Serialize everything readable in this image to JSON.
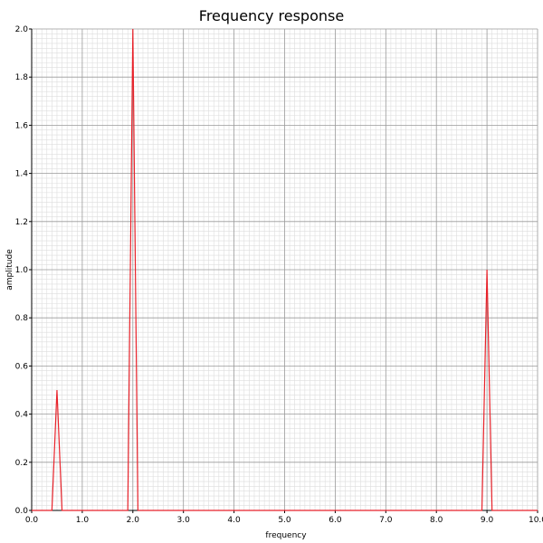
{
  "chart_data": {
    "type": "line",
    "title": "Frequency response",
    "xlabel": "frequency",
    "ylabel": "amplitude",
    "xlim": [
      0.0,
      10.0
    ],
    "ylim": [
      0.0,
      2.0
    ],
    "grid": true,
    "x_ticks": [
      "0.0",
      "1.0",
      "2.0",
      "3.0",
      "4.0",
      "5.0",
      "6.0",
      "7.0",
      "8.0",
      "9.0",
      "10.0"
    ],
    "y_ticks": [
      "0.0",
      "0.2",
      "0.4",
      "0.6",
      "0.8",
      "1.0",
      "1.2",
      "1.4",
      "1.6",
      "1.8",
      "2.0"
    ],
    "series": [
      {
        "color": "#e8222a",
        "x": [
          0.0,
          0.4,
          0.5,
          0.6,
          1.9,
          2.0,
          2.1,
          8.9,
          9.0,
          9.1,
          10.0
        ],
        "y": [
          0.0,
          0.0,
          0.5,
          0.0,
          0.0,
          2.0,
          0.0,
          0.0,
          1.0,
          0.0,
          0.0
        ]
      }
    ],
    "colors": {
      "major_grid": "#9a9a9a",
      "minor_grid": "#dddddd",
      "axis": "#000000"
    }
  }
}
